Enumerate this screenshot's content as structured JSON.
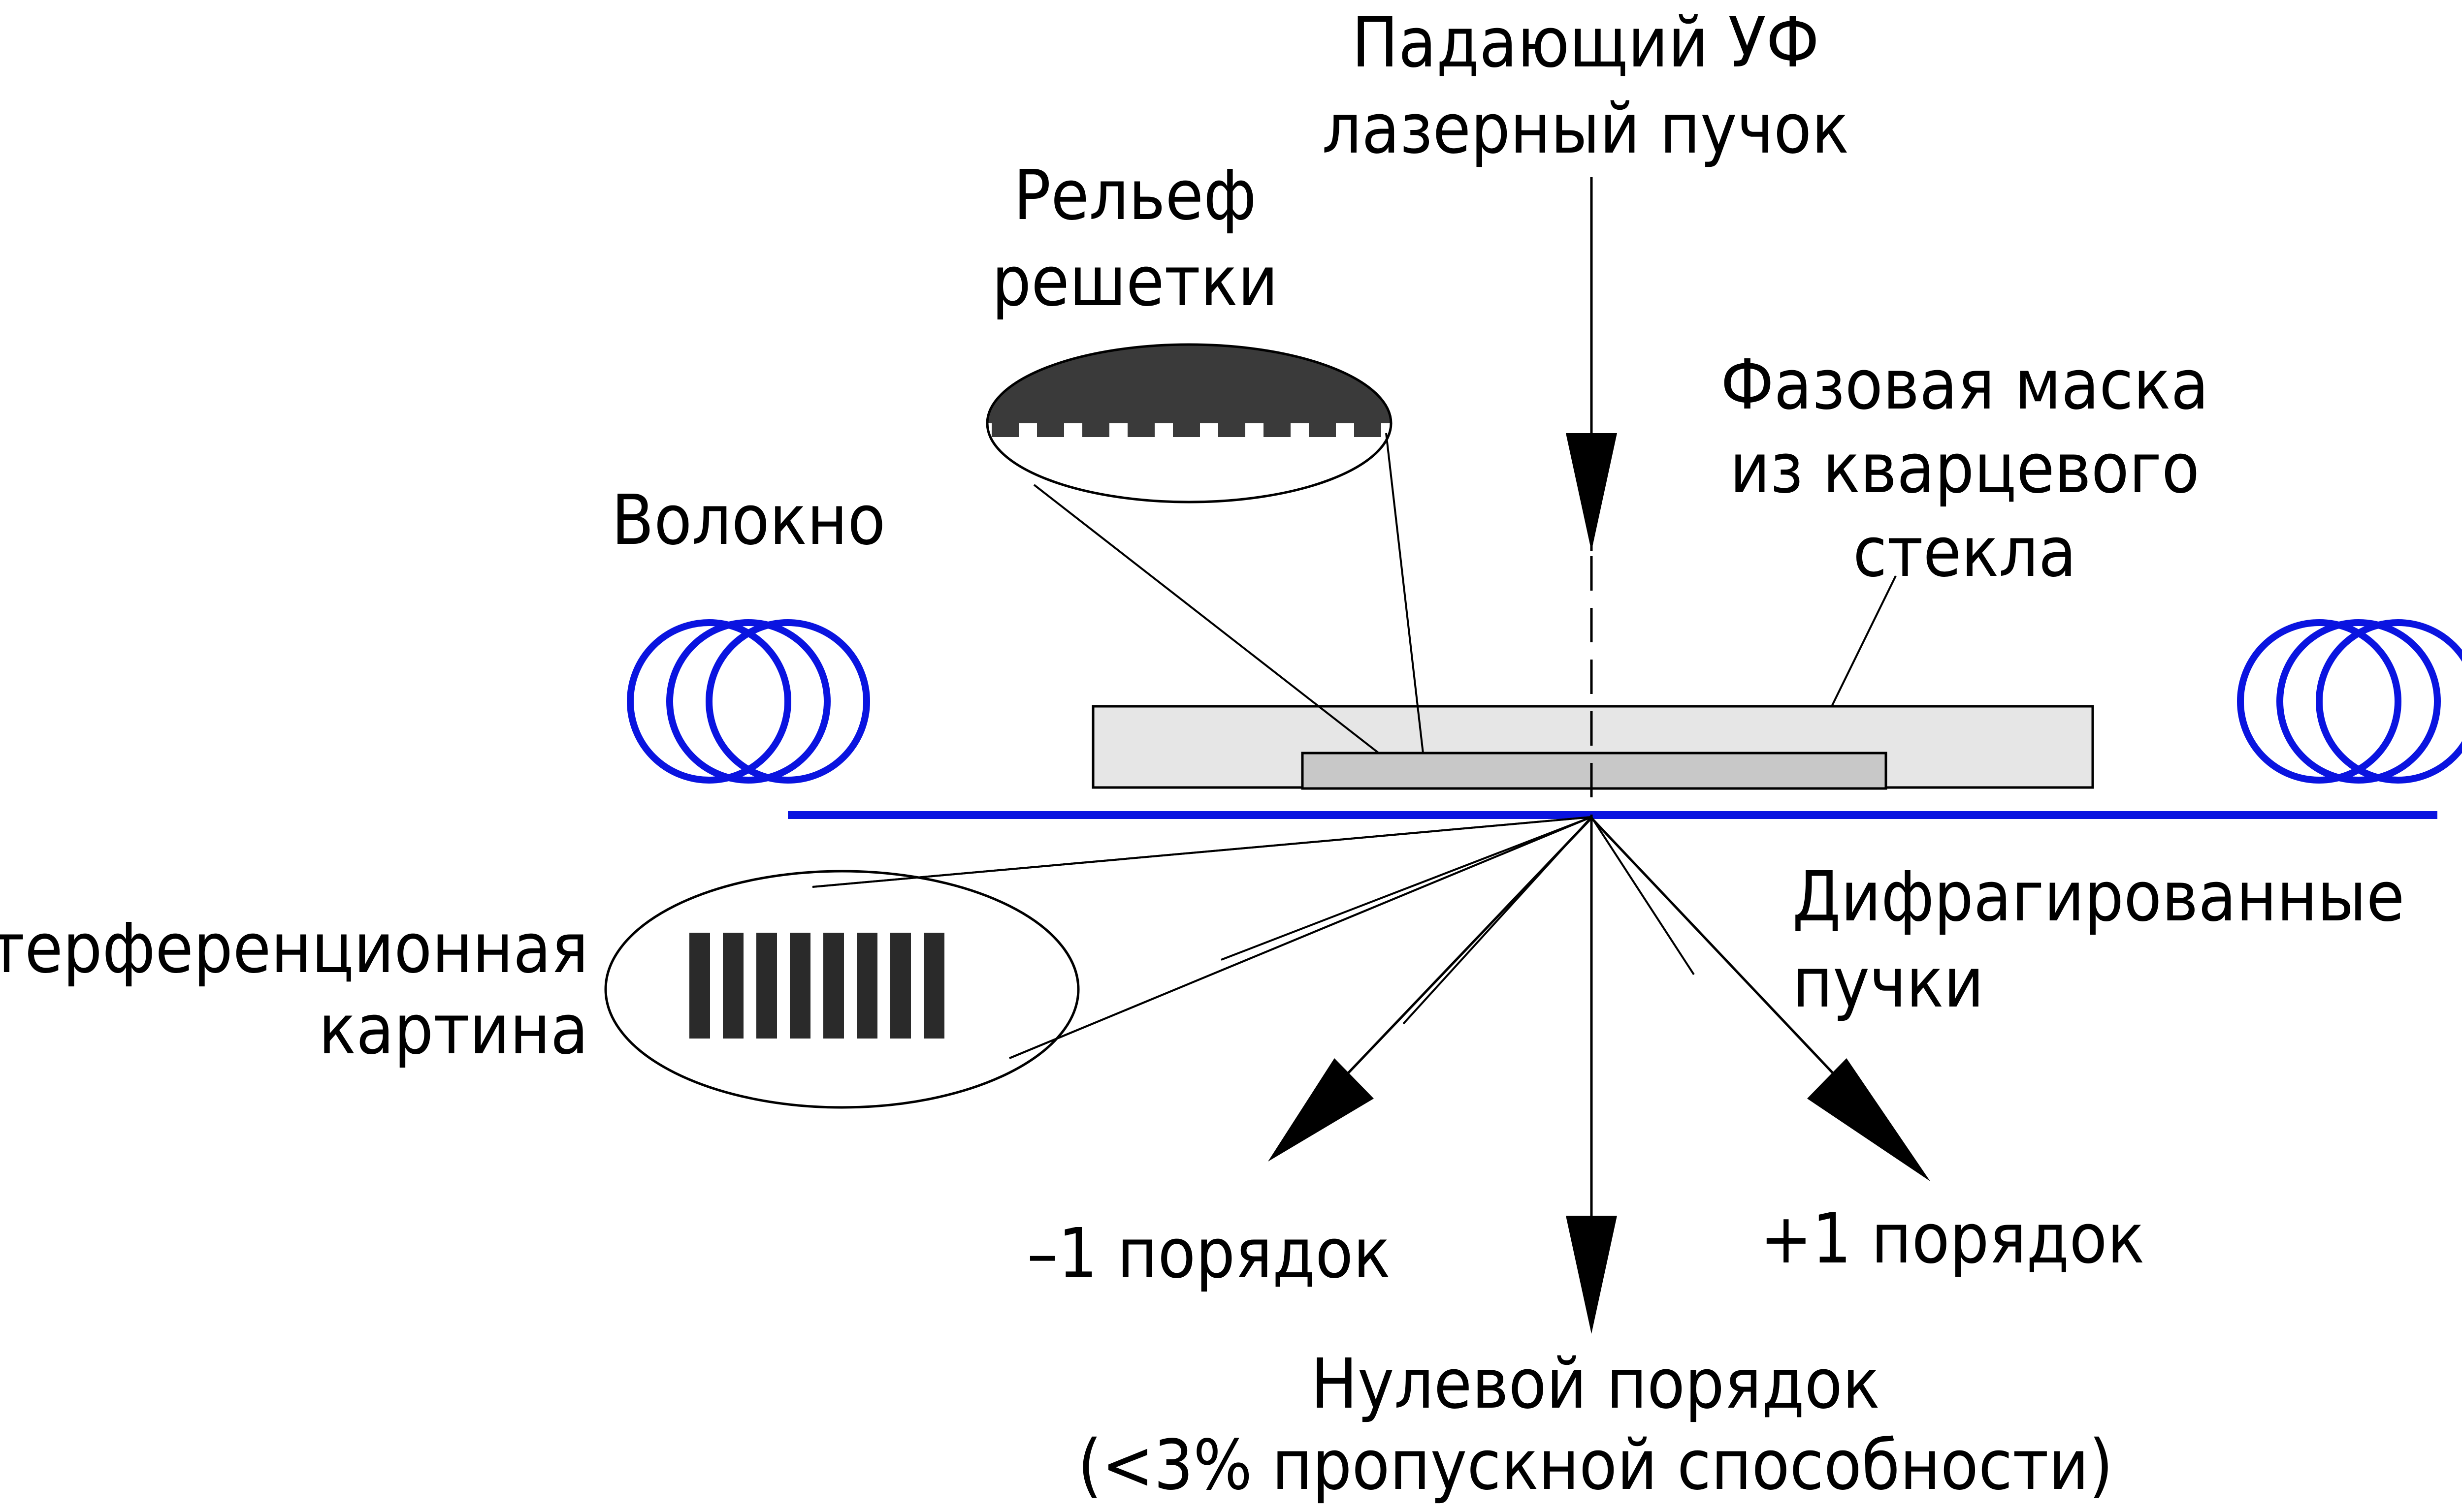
{
  "labels": {
    "incident_line1": "Падающий УФ",
    "incident_line2": "лазерный пучок",
    "relief_line1": "Рельеф",
    "relief_line2": "решетки",
    "mask_line1": "Фазовая маска",
    "mask_line2": "из кварцевого",
    "mask_line3": "стекла",
    "fiber": "Волокно",
    "interference_line1": "Интерференционная",
    "interference_line2": "картина",
    "diffracted_line1": "Дифрагированные",
    "diffracted_line2": "пучки",
    "minus_one": "–1 порядок",
    "plus_one": "+1 порядок",
    "zero_line1": "Нулевой порядок",
    "zero_line2": "(<3% пропускной способности)"
  },
  "colors": {
    "fiber": "#0a14e0",
    "mask_fill": "#e6e6e6",
    "grating_fill": "#c8c8c8",
    "relief_fill": "#3a3a3a",
    "fringe_fill": "#2a2a2a"
  }
}
